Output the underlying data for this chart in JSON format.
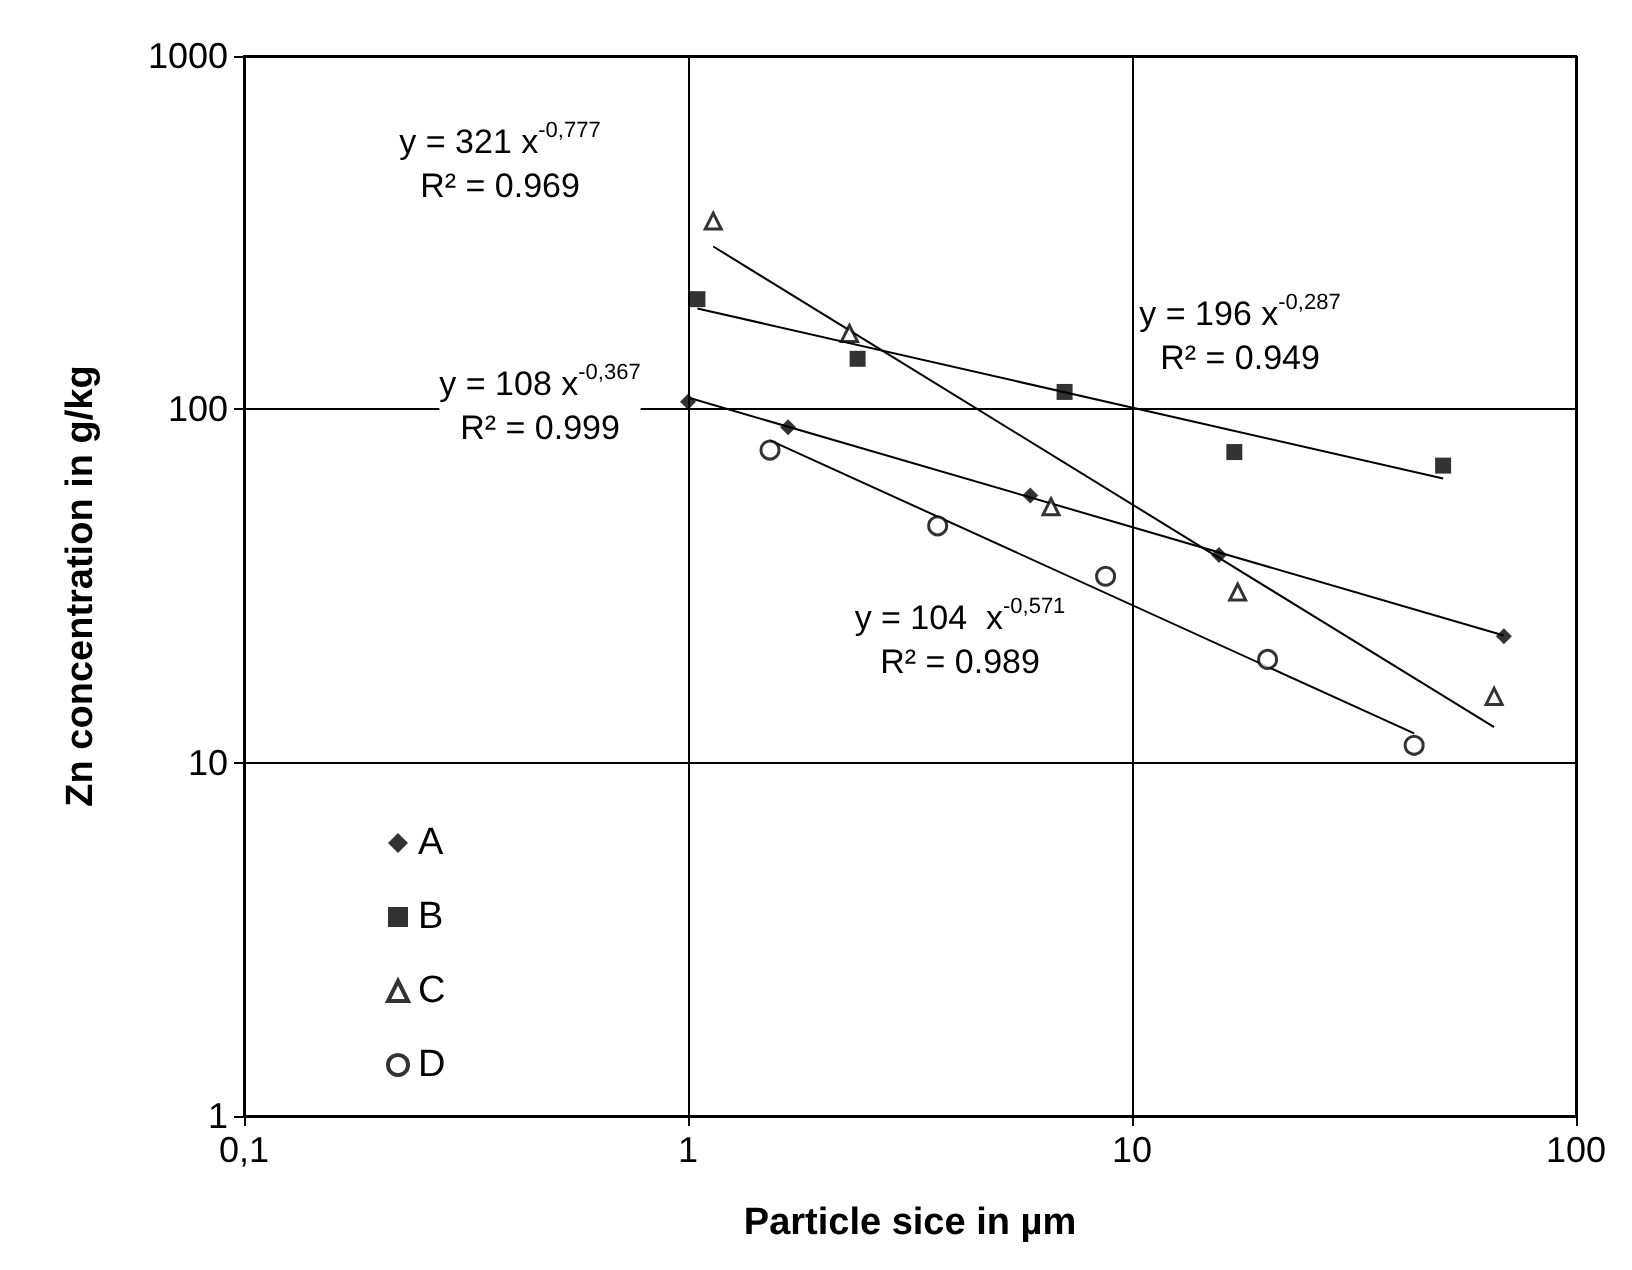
{
  "chart_data": {
    "type": "scatter",
    "xlabel": "Particle sice in µm",
    "ylabel": "Zn concentration in g/kg",
    "log": "xy",
    "xlim": [
      0.1,
      100
    ],
    "xticks": [
      {
        "value": 0.1,
        "label": "0,1"
      },
      1,
      10,
      100
    ],
    "ylim": [
      1,
      1000
    ],
    "yticks": [
      1,
      10,
      100,
      1000
    ],
    "grid": true,
    "legend": "bottom left",
    "series": [
      {
        "name": "A",
        "color": "#000000",
        "marker": "diamond",
        "x": [
          1,
          1.68,
          5.9,
          15.7,
          68.8
        ],
        "values": [
          105,
          89,
          57,
          38.7,
          22.8
        ]
      },
      {
        "name": "B",
        "color": "#000000",
        "marker": "square",
        "x": [
          1.05,
          2.41,
          7.05,
          17,
          50.2
        ],
        "values": [
          205,
          139,
          112,
          75.7,
          69.3
        ]
      },
      {
        "name": "C",
        "color": "#000000",
        "marker": "triangle",
        "x": [
          1.14,
          2.31,
          6.57,
          17.3,
          65.4
        ],
        "values": [
          341,
          164,
          53,
          30.4,
          15.4
        ]
      },
      {
        "name": "D",
        "color": "#000000",
        "marker": "circle",
        "x": [
          1.53,
          3.65,
          8.72,
          20.2,
          43.2
        ],
        "values": [
          76.7,
          46.8,
          33.7,
          19.6,
          11.2
        ]
      },
      {
        "type": "line",
        "color": "#000000",
        "marker": "none",
        "x": [
          1,
          68.8
        ],
        "values": [
          108,
          22.9
        ]
      },
      {
        "type": "line",
        "color": "#000000",
        "marker": "none",
        "x": [
          1.05,
          50.2
        ],
        "values": [
          193,
          63.7
        ]
      },
      {
        "type": "line",
        "color": "#000000",
        "marker": "none",
        "x": [
          1.14,
          65.4
        ],
        "values": [
          289,
          12.6
        ]
      },
      {
        "type": "line",
        "color": "#000000",
        "marker": "none",
        "x": [
          1.53,
          43.2
        ],
        "values": [
          81.7,
          12.1
        ]
      }
    ],
    "annotations": [
      "y = 321 x$^{-0,777}$\nR² = 0.969",
      "y = 108 x$^{-0,367}$\nR² = 0.999",
      "y = 196 x$^{-0,287}$\nR² = 0.949",
      "y = 104  x$^{-0,571}$\nR² = 0.989"
    ]
  }
}
